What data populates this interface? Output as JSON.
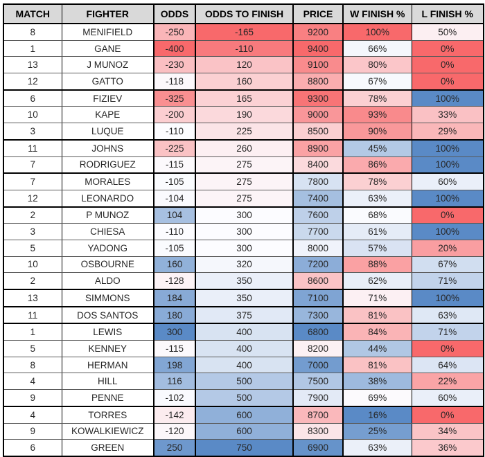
{
  "table": {
    "columns": [
      {
        "key": "match",
        "label": "MATCH"
      },
      {
        "key": "fighter",
        "label": "FIGHTER"
      },
      {
        "key": "odds",
        "label": "ODDS",
        "scale": "red-to-blue"
      },
      {
        "key": "odds-to-finish",
        "label": "ODDS TO FINISH",
        "scale": "red-to-blue"
      },
      {
        "key": "price",
        "label": "PRICE",
        "scale": "blue-to-red"
      },
      {
        "key": "w-finish-pct",
        "label": "W FINISH %",
        "scale": "blue-to-red"
      },
      {
        "key": "l-finish-pct",
        "label": "L FINISH %",
        "scale": "red-to-blue"
      }
    ],
    "rows": [
      [
        "8",
        "MENIFIELD",
        "-250",
        "-165",
        "9200",
        "100%",
        "50%"
      ],
      [
        "1",
        "GANE",
        "-400",
        "-110",
        "9400",
        "66%",
        "0%"
      ],
      [
        "13",
        "J MUNOZ",
        "-230",
        "120",
        "9100",
        "80%",
        "0%"
      ],
      [
        "12",
        "GATTO",
        "-118",
        "160",
        "8800",
        "67%",
        "0%"
      ],
      [
        "6",
        "FIZIEV",
        "-325",
        "165",
        "9300",
        "78%",
        "100%"
      ],
      [
        "10",
        "KAPE",
        "-200",
        "190",
        "9000",
        "93%",
        "33%"
      ],
      [
        "3",
        "LUQUE",
        "-110",
        "225",
        "8500",
        "90%",
        "29%"
      ],
      [
        "11",
        "JOHNS",
        "-225",
        "260",
        "8900",
        "45%",
        "100%"
      ],
      [
        "7",
        "RODRIGUEZ",
        "-115",
        "275",
        "8400",
        "86%",
        "100%"
      ],
      [
        "7",
        "MORALES",
        "-105",
        "275",
        "7800",
        "78%",
        "60%"
      ],
      [
        "12",
        "LEONARDO",
        "-104",
        "275",
        "7400",
        "63%",
        "100%"
      ],
      [
        "2",
        "P MUNOZ",
        "104",
        "300",
        "7600",
        "68%",
        "0%"
      ],
      [
        "3",
        "CHIESA",
        "-110",
        "300",
        "7700",
        "61%",
        "100%"
      ],
      [
        "5",
        "YADONG",
        "-105",
        "300",
        "8000",
        "57%",
        "20%"
      ],
      [
        "10",
        "OSBOURNE",
        "160",
        "320",
        "7200",
        "88%",
        "67%"
      ],
      [
        "2",
        "ALDO",
        "-128",
        "350",
        "8600",
        "62%",
        "71%"
      ],
      [
        "13",
        "SIMMONS",
        "184",
        "350",
        "7100",
        "71%",
        "100%"
      ],
      [
        "11",
        "DOS SANTOS",
        "180",
        "375",
        "7300",
        "81%",
        "63%"
      ],
      [
        "1",
        "LEWIS",
        "300",
        "400",
        "6800",
        "84%",
        "71%"
      ],
      [
        "5",
        "KENNEY",
        "-115",
        "400",
        "8200",
        "44%",
        "0%"
      ],
      [
        "8",
        "HERMAN",
        "198",
        "400",
        "7000",
        "81%",
        "64%"
      ],
      [
        "4",
        "HILL",
        "116",
        "500",
        "7500",
        "38%",
        "22%"
      ],
      [
        "9",
        "PENNE",
        "-102",
        "500",
        "7900",
        "69%",
        "60%"
      ],
      [
        "4",
        "TORRES",
        "-142",
        "600",
        "8700",
        "16%",
        "0%"
      ],
      [
        "9",
        "KOWALKIEWICZ",
        "-120",
        "600",
        "8300",
        "25%",
        "34%"
      ],
      [
        "6",
        "GREEN",
        "250",
        "750",
        "6900",
        "63%",
        "36%"
      ]
    ],
    "group_breaks_after_rows": [
      4,
      7,
      9,
      11,
      16,
      17,
      18,
      23
    ]
  },
  "colors": {
    "scale_red": "#F8696B",
    "scale_white": "#FCFCFF",
    "scale_blue": "#5A8AC6",
    "header_bg": "#D9D9D9",
    "border": "#000000",
    "text": "#262626"
  }
}
